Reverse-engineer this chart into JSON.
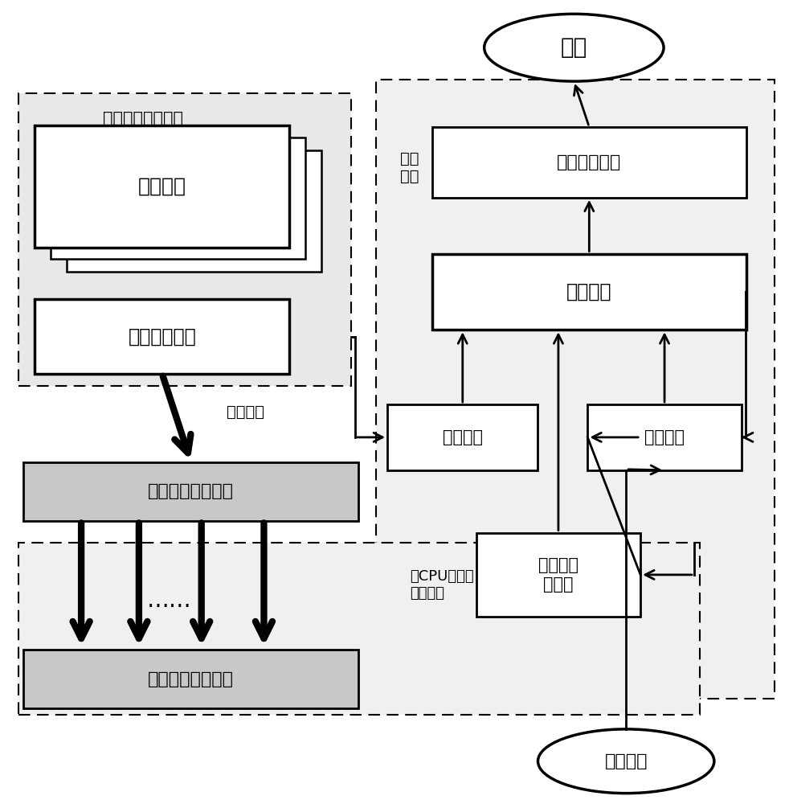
{
  "fig_width": 9.82,
  "fig_height": 10.0,
  "labels": {
    "jieguo": "结果",
    "waibukongzhi": "外部控制",
    "mijuanxitong": "蜜罐\n系统",
    "kehu_xuni": "客户虚拟内存空间",
    "yonghu_kj": "用户空间",
    "caozuo_xtnh": "操作系统内核",
    "yebiaofy": "页表翻译",
    "kehu_wuli": "客户物理内存空间",
    "jiqi_wuli": "机器物理内存空间",
    "mijuan_jl": "蜜罐记录模块",
    "mijuan_mk": "蜜罐模块",
    "neisheng_mk": "内省模块",
    "kongzhi_mk": "控制模块",
    "neicun_xn": "内存虚拟\n化模块",
    "geCPU": "各CPU对应的\n二级页表",
    "dots": "……"
  }
}
